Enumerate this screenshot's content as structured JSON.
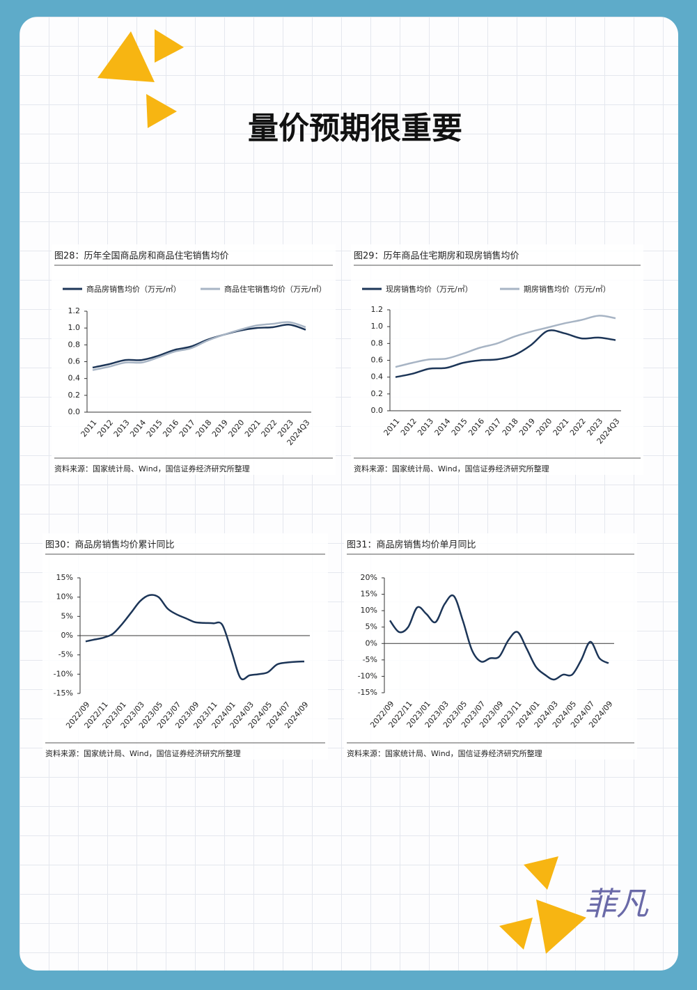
{
  "title": "量价预期很重要",
  "signature": "菲凡",
  "chart_data": [
    {
      "type": "line",
      "title": "图28：历年全国商品房和商品住宅销售均价",
      "source": "资料来源：国家统计局、Wind，国信证券经济研究所整理",
      "categories": [
        "2011",
        "2012",
        "2013",
        "2014",
        "2015",
        "2016",
        "2017",
        "2018",
        "2019",
        "2020",
        "2021",
        "2022",
        "2023",
        "2024Q3"
      ],
      "series": [
        {
          "name": "商品房销售均价（万元/㎡）",
          "color": "#1c3557",
          "values": [
            0.53,
            0.57,
            0.62,
            0.62,
            0.67,
            0.74,
            0.78,
            0.86,
            0.92,
            0.97,
            1.0,
            1.01,
            1.04,
            0.98
          ]
        },
        {
          "name": "商品住宅销售均价（万元/㎡）",
          "color": "#a7b4c4",
          "values": [
            0.5,
            0.54,
            0.59,
            0.59,
            0.65,
            0.72,
            0.76,
            0.85,
            0.92,
            0.98,
            1.03,
            1.05,
            1.07,
            1.01
          ]
        }
      ],
      "ylim": [
        0,
        1.2
      ],
      "yticks": [
        {
          "value": 0,
          "label": "0.0"
        },
        0.2,
        0.4,
        0.6,
        0.8,
        {
          "value": 1,
          "label": "1.0"
        },
        1.2
      ],
      "legend": "top"
    },
    {
      "type": "line",
      "title": "图29：历年商品住宅期房和现房销售均价",
      "source": "资料来源：国家统计局、Wind，国信证券经济研究所整理",
      "categories": [
        "2011",
        "2012",
        "2013",
        "2014",
        "2015",
        "2016",
        "2017",
        "2018",
        "2019",
        "2020",
        "2021",
        "2022",
        "2023",
        "2024Q3"
      ],
      "series": [
        {
          "name": "现房销售均价（万元/㎡）",
          "color": "#1c3557",
          "values": [
            0.4,
            0.44,
            0.5,
            0.51,
            0.57,
            0.6,
            0.61,
            0.66,
            0.78,
            0.95,
            0.92,
            0.86,
            0.87,
            0.84
          ]
        },
        {
          "name": "期房销售均价（万元/㎡）",
          "color": "#a7b4c4",
          "values": [
            0.52,
            0.57,
            0.61,
            0.62,
            0.68,
            0.75,
            0.8,
            0.88,
            0.94,
            0.99,
            1.04,
            1.08,
            1.13,
            1.1
          ]
        }
      ],
      "ylim": [
        0,
        1.2
      ],
      "yticks": [
        {
          "value": 0,
          "label": "0.0"
        },
        0.2,
        0.4,
        0.6,
        0.8,
        {
          "value": 1,
          "label": "1.0"
        },
        1.2
      ],
      "legend": "top"
    },
    {
      "type": "line",
      "title": "图30：商品房销售均价累计同比",
      "source": "资料来源：国家统计局、Wind，国信证券经济研究所整理",
      "categories": [
        "2022/09",
        null,
        "2022/11",
        null,
        "2023/01",
        null,
        "2023/03",
        null,
        "2023/05",
        null,
        "2023/07",
        null,
        "2023/09",
        null,
        "2023/11",
        null,
        "2024/01",
        null,
        "2024/03",
        null,
        "2024/05",
        null,
        "2024/07",
        null,
        "2024/09"
      ],
      "series": [
        {
          "color": "#1c3557",
          "values": [
            -1.5,
            -1.0,
            -0.5,
            0.5,
            3,
            6,
            9,
            10.5,
            10,
            7,
            5.5,
            4.5,
            3.5,
            3.3,
            3.2,
            2.8,
            -4,
            -11,
            -10.3,
            -10,
            -9.5,
            -7.5,
            -7,
            -6.8,
            -6.7
          ]
        }
      ],
      "ylim": [
        -15,
        15
      ],
      "yticks": [
        {
          "value": -15,
          "label": "-15%"
        },
        {
          "value": -10,
          "label": "-10%"
        },
        {
          "value": -5,
          "label": "-5%"
        },
        {
          "value": 0,
          "label": "0%"
        },
        {
          "value": 5,
          "label": "5%"
        },
        {
          "value": 10,
          "label": "10%"
        },
        {
          "value": 15,
          "label": "15%"
        }
      ]
    },
    {
      "type": "line",
      "title": "图31：商品房销售均价单月同比",
      "source": "资料来源：国家统计局、Wind，国信证券经济研究所整理",
      "categories": [
        "2022/09",
        null,
        "2022/11",
        null,
        "2023/01",
        null,
        "2023/03",
        null,
        "2023/05",
        null,
        "2023/07",
        null,
        "2023/09",
        null,
        "2023/11",
        null,
        "2024/01",
        null,
        "2024/03",
        null,
        "2024/05",
        null,
        "2024/07",
        null,
        "2024/09"
      ],
      "series": [
        {
          "color": "#1c3557",
          "values": [
            7,
            3.5,
            5,
            11,
            9,
            6.5,
            12,
            14.5,
            7,
            -2,
            -5.5,
            -4.5,
            -4,
            1,
            3.5,
            -1.5,
            -7,
            -9.5,
            -11,
            -9.5,
            -9.5,
            -5,
            0.5,
            -4.5,
            -6
          ]
        }
      ],
      "ylim": [
        -15,
        20
      ],
      "yticks": [
        {
          "value": -15,
          "label": "-15%"
        },
        {
          "value": -10,
          "label": "-10%"
        },
        {
          "value": -5,
          "label": "-5%"
        },
        {
          "value": 0,
          "label": "0%"
        },
        {
          "value": 5,
          "label": "5%"
        },
        {
          "value": 10,
          "label": "10%"
        },
        {
          "value": 15,
          "label": "15%"
        },
        {
          "value": 20,
          "label": "20%"
        }
      ]
    }
  ]
}
